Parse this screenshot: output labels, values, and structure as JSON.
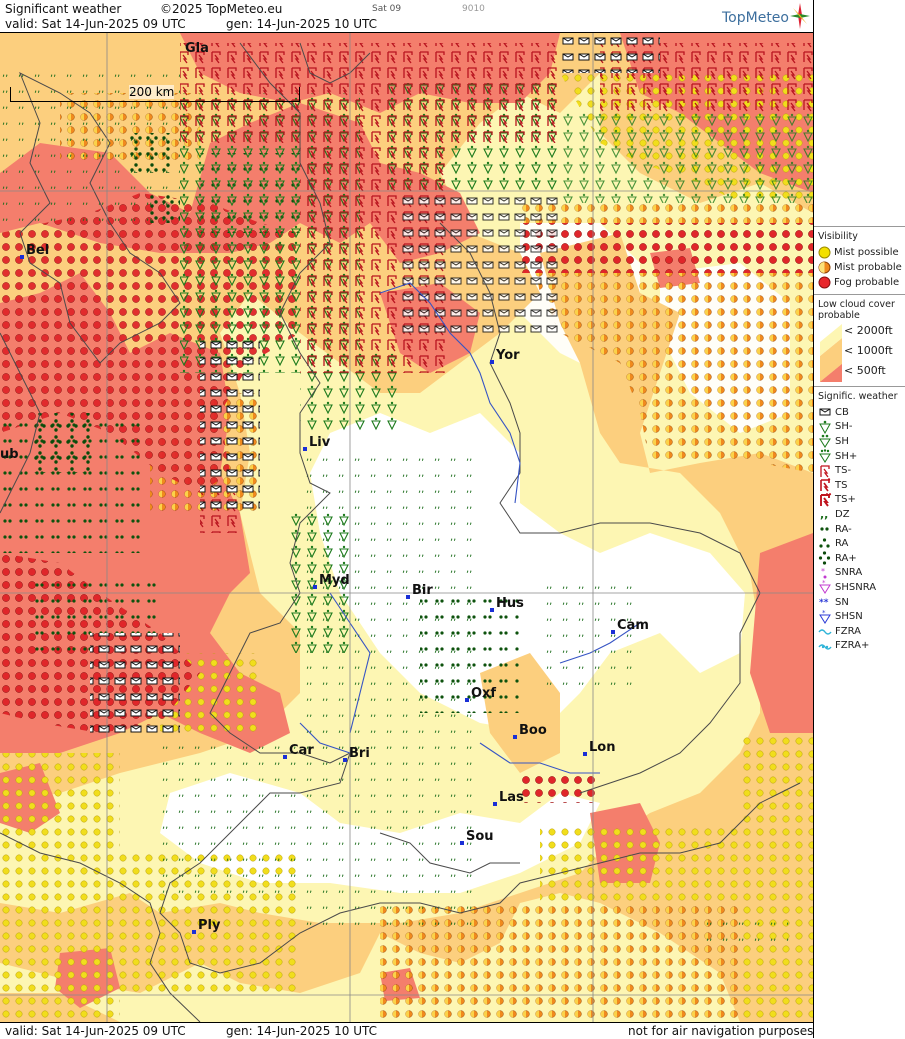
{
  "header": {
    "title": "Significant weather",
    "copyright": "©2025 TopMeteo.eu",
    "step": "Sat 09",
    "code": "9010",
    "valid": "valid:  Sat  14-Jun-2025  09 UTC",
    "generated": "gen: 14-Jun-2025 10 UTC",
    "brand": "TopMeteo"
  },
  "footer": {
    "valid": "valid:  Sat  14-Jun-2025  09 UTC",
    "generated": "gen: 14-Jun-2025 10 UTC",
    "disclaimer": "not for air navigation purposes"
  },
  "map": {
    "scale_label": "200 km",
    "cities": [
      {
        "name": "Gla"
      },
      {
        "name": "Bel"
      },
      {
        "name": "Yor"
      },
      {
        "name": "Liv"
      },
      {
        "name": "ub"
      },
      {
        "name": "Myd"
      },
      {
        "name": "Bir"
      },
      {
        "name": "Hus"
      },
      {
        "name": "Cam"
      },
      {
        "name": "Oxf"
      },
      {
        "name": "Boo"
      },
      {
        "name": "Lon"
      },
      {
        "name": "Car"
      },
      {
        "name": "Bri"
      },
      {
        "name": "Las"
      },
      {
        "name": "Sou"
      },
      {
        "name": "Ply"
      }
    ]
  },
  "legend": {
    "visibility": {
      "title": "Visibility",
      "items": [
        {
          "label": "Mist possible",
          "color": "#f3e000"
        },
        {
          "label": "Mist probable",
          "color": "#f08a1e"
        },
        {
          "label": "Fog probable",
          "color": "#e8262b"
        }
      ]
    },
    "low_cloud": {
      "title": "Low cloud cover probable",
      "items": [
        {
          "label": "< 2000ft",
          "color": "#fdf6b3"
        },
        {
          "label": "< 1000ft",
          "color": "#fccf7e"
        },
        {
          "label": "<   500ft",
          "color": "#f47e6c"
        }
      ]
    },
    "weather": {
      "title": "Signific. weather",
      "items": [
        {
          "label": "CB",
          "icon": "cb-icon"
        },
        {
          "label": "SH-",
          "icon": "shower-light-icon"
        },
        {
          "label": "SH",
          "icon": "shower-icon"
        },
        {
          "label": "SH+",
          "icon": "shower-heavy-icon"
        },
        {
          "label": "TS-",
          "icon": "thunderstorm-light-icon"
        },
        {
          "label": "TS",
          "icon": "thunderstorm-icon"
        },
        {
          "label": "TS+",
          "icon": "thunderstorm-heavy-icon"
        },
        {
          "label": "DZ",
          "icon": "drizzle-icon"
        },
        {
          "label": "RA-",
          "icon": "rain-light-icon"
        },
        {
          "label": "RA",
          "icon": "rain-icon"
        },
        {
          "label": "RA+",
          "icon": "rain-heavy-icon"
        },
        {
          "label": "SNRA",
          "icon": "sleet-icon"
        },
        {
          "label": "SHSNRA",
          "icon": "sleet-shower-icon"
        },
        {
          "label": "SN",
          "icon": "snow-icon"
        },
        {
          "label": "SHSN",
          "icon": "snow-shower-icon"
        },
        {
          "label": "FZRA",
          "icon": "freezing-rain-icon"
        },
        {
          "label": "FZRA+",
          "icon": "freezing-rain-heavy-icon"
        }
      ]
    }
  }
}
